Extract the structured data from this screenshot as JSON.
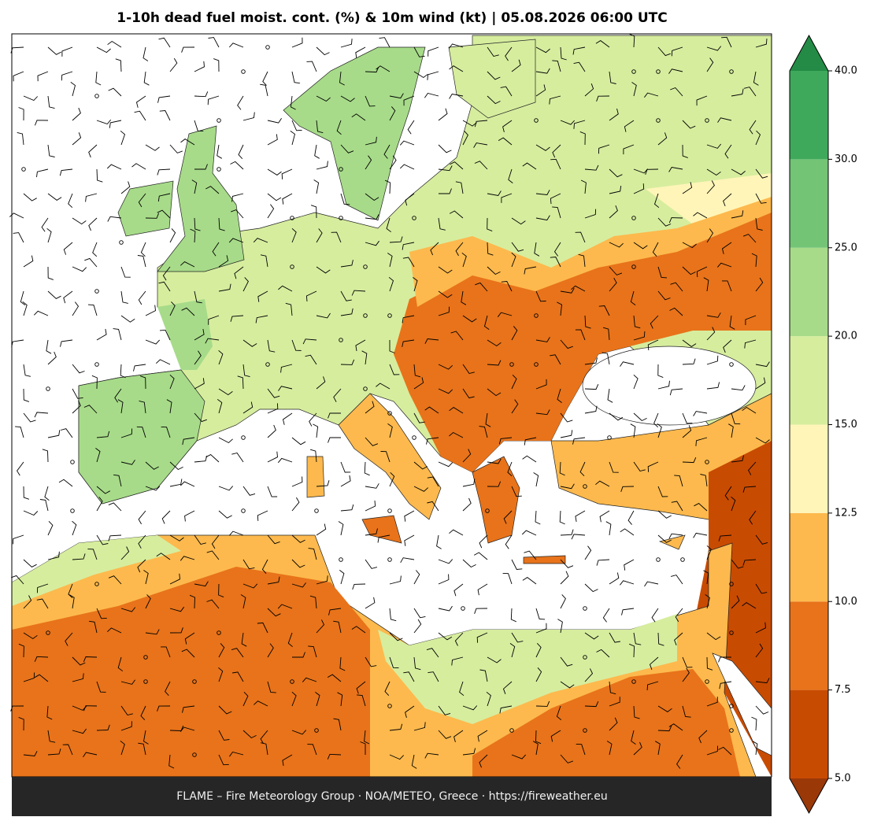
{
  "title": "1-10h dead fuel moist. cont. (%) & 10m wind (kt)  |  05.08.2026 06:00 UTC",
  "footer": "FLAME – Fire Meteorology Group · NOA/METEO, Greece · https://fireweather.eu",
  "colorbar": {
    "levels": [
      5,
      7.5,
      10,
      12.5,
      15,
      20,
      25,
      30,
      40
    ],
    "colors": [
      "#c84b02",
      "#e8731a",
      "#fdb94d",
      "#fff5b8",
      "#d6ed9e",
      "#a7db89",
      "#74c476",
      "#3fa95b"
    ],
    "extend_colors": [
      "#9a3808",
      "#238b45"
    ],
    "ticks": [
      {
        "value": 5,
        "label": "5.0"
      },
      7.5,
      {
        "value": 10,
        "label": "10.0"
      },
      12.5,
      {
        "value": 15,
        "label": "15.0"
      },
      {
        "value": 20,
        "label": "20.0"
      },
      {
        "value": 25,
        "label": "25.0"
      },
      {
        "value": 30,
        "label": "30.0"
      },
      {
        "value": 40,
        "label": "40.0"
      }
    ]
  }
}
